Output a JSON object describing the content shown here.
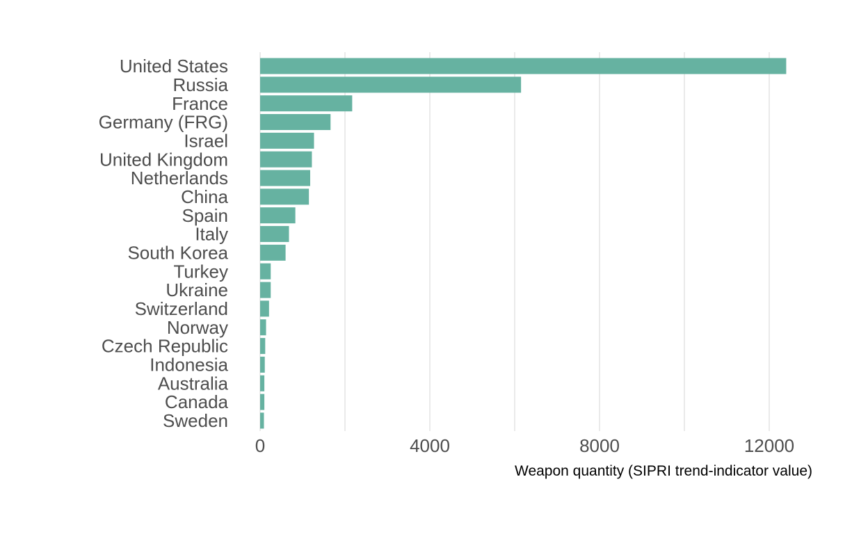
{
  "chart_data": {
    "type": "bar",
    "orientation": "horizontal",
    "categories": [
      "United States",
      "Russia",
      "France",
      "Germany (FRG)",
      "Israel",
      "United Kingdom",
      "Netherlands",
      "China",
      "Spain",
      "Italy",
      "South Korea",
      "Turkey",
      "Ukraine",
      "Switzerland",
      "Norway",
      "Czech Republic",
      "Indonesia",
      "Australia",
      "Canada",
      "Sweden"
    ],
    "values": [
      12400,
      6150,
      2170,
      1660,
      1270,
      1220,
      1180,
      1150,
      830,
      680,
      600,
      250,
      250,
      210,
      140,
      120,
      110,
      100,
      100,
      90
    ],
    "title": "",
    "xlabel": "Weapon quantity (SIPRI trend-indicator value)",
    "ylabel": "",
    "xlim": [
      0,
      13000
    ],
    "x_ticks": [
      0,
      4000,
      8000,
      12000
    ],
    "x_tick_labels": [
      "0",
      "4000",
      "8000",
      "12000"
    ],
    "grid": "vertical",
    "legend": "none",
    "bar_color": "#66b2a1"
  }
}
